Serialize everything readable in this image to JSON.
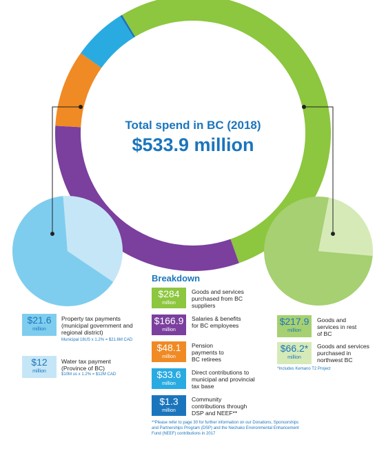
{
  "colors": {
    "green": "#8dc63f",
    "purple": "#7b3f9e",
    "orange": "#f08a24",
    "cyan": "#29abe2",
    "blue": "#1b75bc",
    "light_blue": "#7fcdee",
    "pale_blue": "#c5e6f6",
    "mid_green": "#a6d071",
    "pale_green": "#d6eab8"
  },
  "header": {
    "title": "Total spend in BC (2018)",
    "total": "$533.9 million"
  },
  "breakdown_heading": "Breakdown",
  "chart_data": [
    {
      "type": "pie",
      "title": "Total spend in BC (2018)",
      "donut": true,
      "unit": "million",
      "categories": [
        "Goods and services purchased from BC suppliers",
        "Salaries & benefits for BC employees",
        "Pension payments to BC retirees",
        "Direct contributions to municipal and provincial tax base",
        "Community contributions through DSP and NEEF**"
      ],
      "values": [
        284,
        166.9,
        48.1,
        33.6,
        1.3
      ],
      "colors": [
        "#8dc63f",
        "#7b3f9e",
        "#f08a24",
        "#29abe2",
        "#1b75bc"
      ]
    },
    {
      "type": "pie",
      "unit": "million",
      "categories": [
        "Property tax payments (municipal government and regional district)",
        "Water tax payment (Province of BC)"
      ],
      "values": [
        21.6,
        12
      ],
      "colors": [
        "#7fcdee",
        "#c5e6f6"
      ]
    },
    {
      "type": "pie",
      "unit": "million",
      "categories": [
        "Goods and services in rest of BC",
        "Goods and services purchased in northwest BC"
      ],
      "values": [
        217.9,
        66.2
      ],
      "colors": [
        "#a6d071",
        "#d6eab8"
      ]
    }
  ],
  "breakdown": [
    {
      "amount": "$284",
      "unit": "million",
      "desc": "Goods and services purchased from BC suppliers",
      "color": "#8dc63f"
    },
    {
      "amount": "$166.9",
      "unit": "million",
      "desc": "Salaries & benefits for BC employees",
      "color": "#7b3f9e"
    },
    {
      "amount": "$48.1",
      "unit": "million",
      "desc": "Pension payments to BC retirees",
      "color": "#f08a24"
    },
    {
      "amount": "$33.6",
      "unit": "million",
      "desc": "Direct contributions to municipal and provincial tax base",
      "color": "#29abe2"
    },
    {
      "amount": "$1.3",
      "unit": "million",
      "desc": "Community contributions through DSP and NEEF**",
      "color": "#1b75bc"
    }
  ],
  "left_legend": [
    {
      "amount": "$21.6",
      "unit": "million",
      "desc": "Property tax payments (municipal government and regional district)",
      "note": "Municipal 18US x 1.2% = $21.6M CAD",
      "color": "#7fcdee"
    },
    {
      "amount": "$12",
      "unit": "million",
      "desc": "Water tax payment (Province of BC)",
      "note": "$10M us x 1.2% = $12M CAD",
      "color": "#c5e6f6"
    }
  ],
  "right_legend": [
    {
      "amount": "$217.9",
      "unit": "million",
      "desc": "Goods and services in rest of BC",
      "color": "#a6d071"
    },
    {
      "amount": "$66.2*",
      "unit": "million",
      "desc": "Goods and services purchased in northwest BC",
      "color": "#d6eab8"
    }
  ],
  "right_footnote": "*Includes Kemano T2 Project",
  "footnote": "**Please refer to page 30 for further information on our Donations, Sponsorships and Partnerships Program (DSP) and the Nechako Environmental Enhancement Fund (NEEF) contributions in 2017"
}
